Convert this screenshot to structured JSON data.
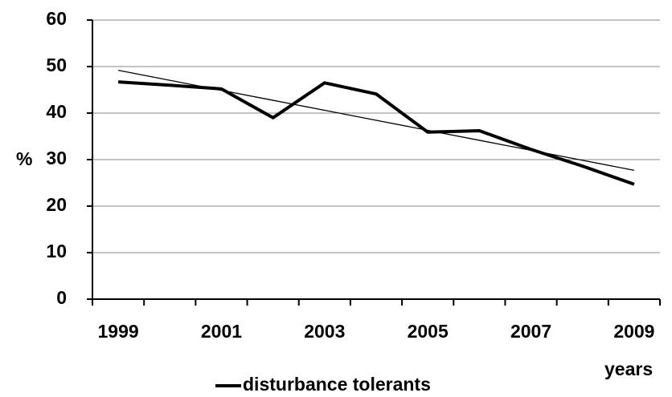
{
  "chart_data": {
    "type": "line",
    "categories": [
      "1999",
      null,
      "2001",
      null,
      "2003",
      null,
      "2005",
      null,
      "2007",
      null,
      "2009"
    ],
    "series": [
      {
        "name": "disturbance tolerants",
        "color": "#000000",
        "values": [
          46.7,
          46.0,
          45.2,
          39.0,
          46.5,
          44.1,
          35.9,
          36.2,
          32.2,
          28.6,
          24.7
        ]
      },
      {
        "color": "#000000",
        "values": [
          49.2,
          47.05,
          44.9,
          42.75,
          40.6,
          38.45,
          36.3,
          34.15,
          32.0,
          29.85,
          27.7
        ]
      }
    ],
    "x_label": "years",
    "y_label": "%",
    "ylim": [
      0,
      60
    ],
    "yticks": [
      0,
      10,
      20,
      30,
      40,
      50,
      60
    ],
    "grid": true,
    "legend": "bottom"
  }
}
